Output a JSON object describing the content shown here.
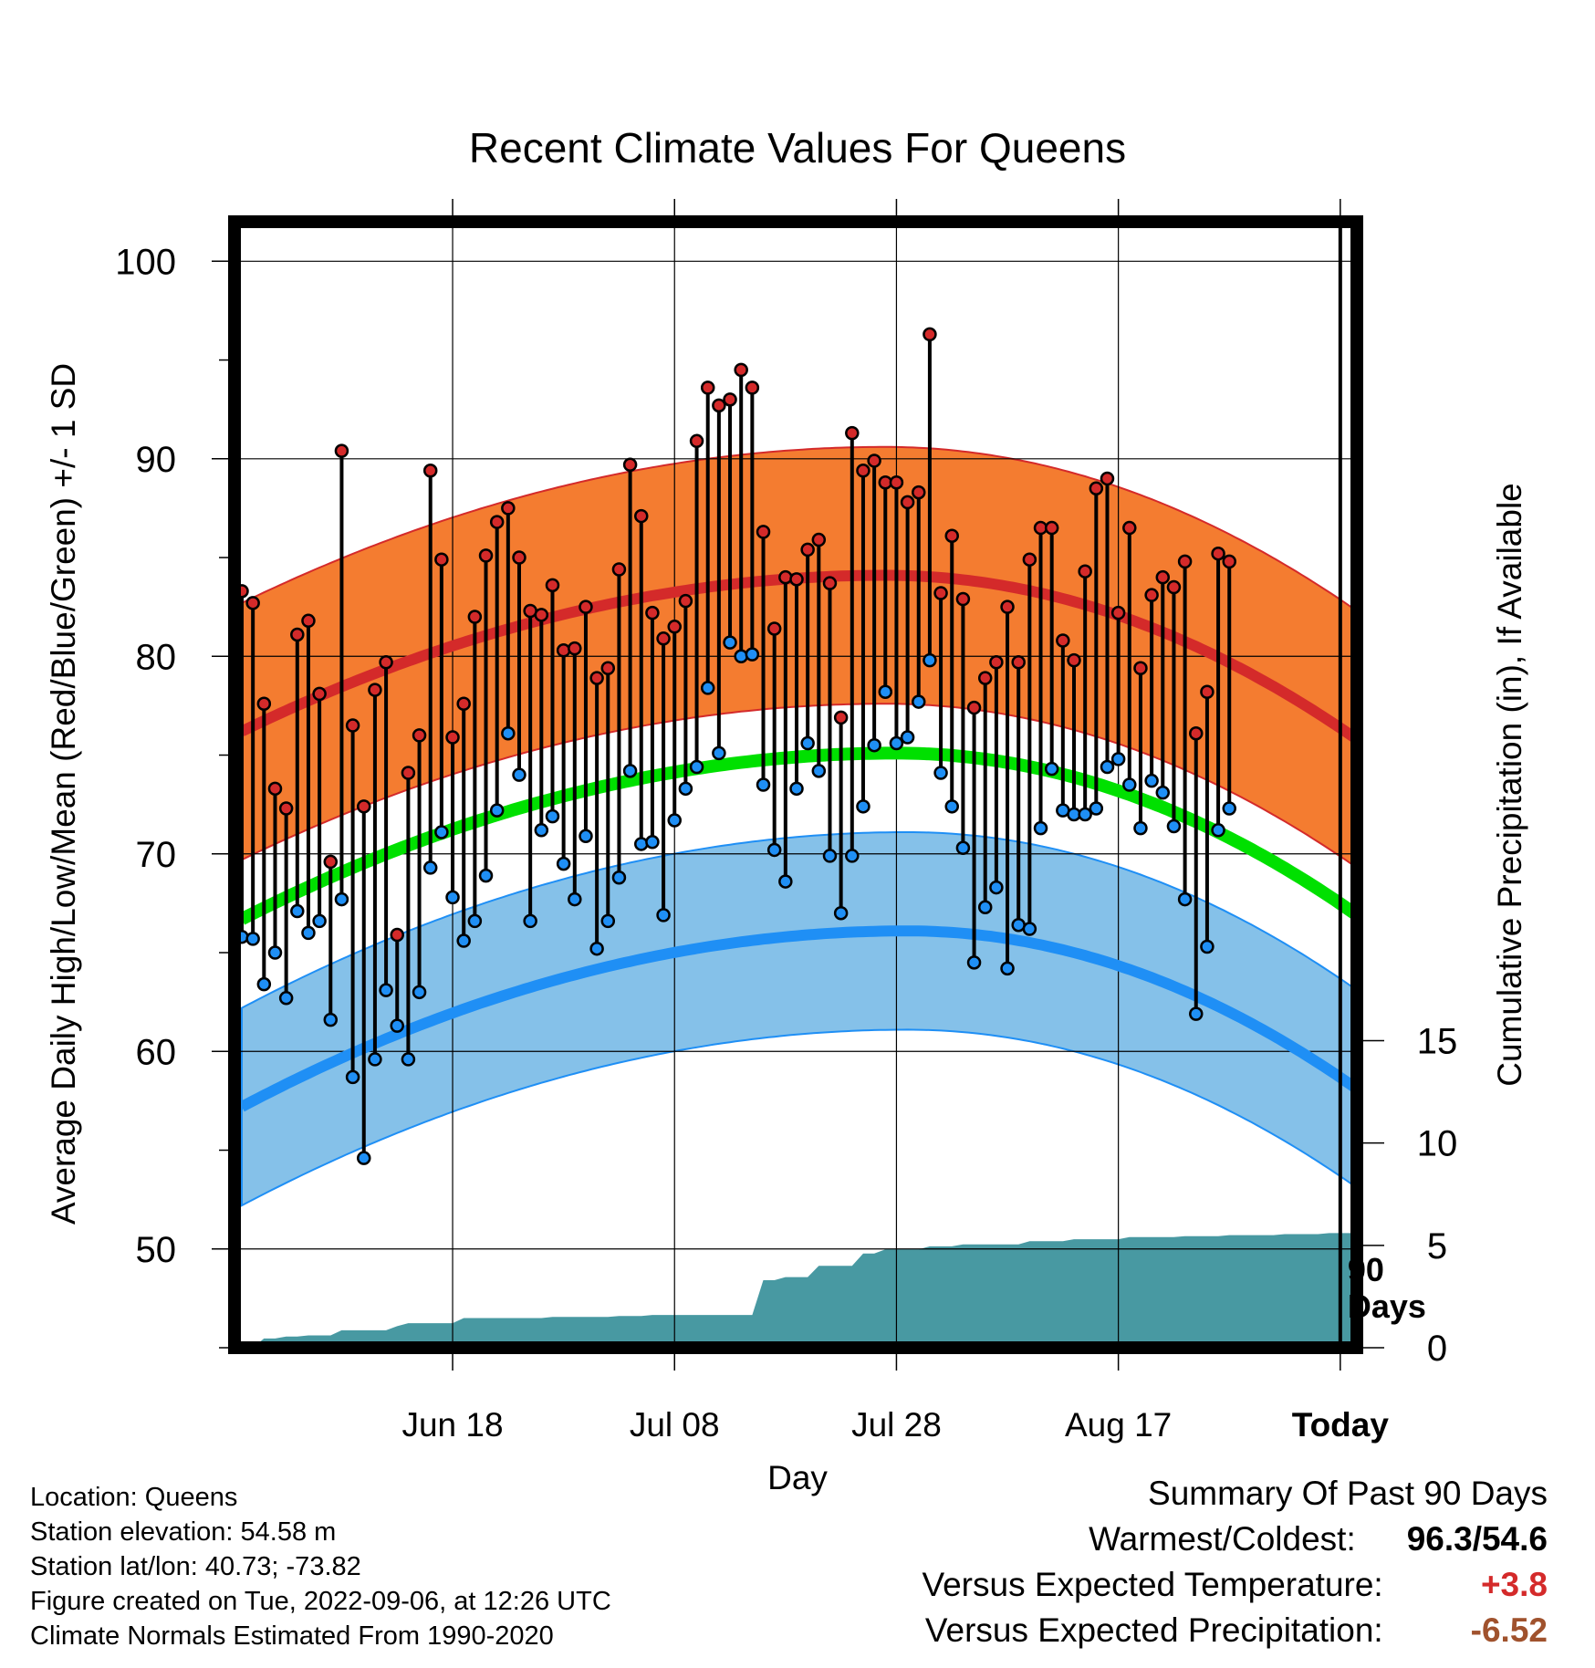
{
  "chart_data": {
    "type": "line",
    "title": "Recent Climate Values For Queens",
    "xlabel": "Day",
    "ylabel": "Average Daily High/Low/Mean (Red/Blue/Green) +/- 1 SD",
    "y2label": "Cumulative Precipitation (in), If Available",
    "ylim": [
      45,
      102
    ],
    "y2lim": [
      0,
      55
    ],
    "x_ticks": [
      {
        "day": 20,
        "label": "Jun 18"
      },
      {
        "day": 40,
        "label": "Jul 08"
      },
      {
        "day": 60,
        "label": "Jul 28"
      },
      {
        "day": 80,
        "label": "Aug 17"
      },
      {
        "day": 100,
        "label": "Today"
      }
    ],
    "y_ticks": [
      50,
      60,
      70,
      80,
      90,
      100
    ],
    "y2_ticks": [
      0,
      5,
      10,
      15
    ],
    "today_annotation": "90 Days",
    "colors": {
      "high_band": "#f47c30",
      "high_line": "#d42a2a",
      "low_band": "#85c1e9",
      "low_line": "#1f8ff5",
      "mean_line": "#00e000",
      "precip": "#4899a2"
    },
    "series": [
      {
        "name": "High",
        "values": [
          83.3,
          82.7,
          77.6,
          73.3,
          72.3,
          81.1,
          81.8,
          78.1,
          69.6,
          90.4,
          76.5,
          72.4,
          78.3,
          79.7,
          65.9,
          74.1,
          76.0,
          89.4,
          84.9,
          75.9,
          77.6,
          82.0,
          85.1,
          86.8,
          87.5,
          85.0,
          82.3,
          82.1,
          83.6,
          80.3,
          80.4,
          82.5,
          78.9,
          79.4,
          84.4,
          89.7,
          87.1,
          82.2,
          80.9,
          81.5,
          82.8,
          90.9,
          93.6,
          92.7,
          93.0,
          94.5,
          93.6,
          86.3,
          81.4,
          84.0,
          83.9,
          85.4,
          85.9,
          83.7,
          76.9,
          91.3,
          89.4,
          89.9,
          88.8,
          88.8,
          87.8,
          88.3,
          96.3,
          83.2,
          86.1,
          82.9,
          77.4,
          78.9,
          79.7,
          82.5,
          79.7,
          84.9,
          86.5,
          86.5,
          80.8,
          79.8,
          84.3,
          88.5,
          89.0,
          82.2,
          86.5,
          79.4,
          83.1,
          84.0,
          83.5,
          84.8,
          76.1,
          78.2,
          85.2,
          84.8
        ]
      },
      {
        "name": "Low",
        "values": [
          65.8,
          65.7,
          63.4,
          65.0,
          62.7,
          67.1,
          66.0,
          66.6,
          61.6,
          67.7,
          58.7,
          54.6,
          59.6,
          63.1,
          61.3,
          59.6,
          63.0,
          69.3,
          71.1,
          67.8,
          65.6,
          66.6,
          68.9,
          72.2,
          76.1,
          74.0,
          66.6,
          71.2,
          71.9,
          69.5,
          67.7,
          70.9,
          65.2,
          66.6,
          68.8,
          74.2,
          70.5,
          70.6,
          66.9,
          71.7,
          73.3,
          74.4,
          78.4,
          75.1,
          80.7,
          80.0,
          80.1,
          73.5,
          70.2,
          68.6,
          73.3,
          75.6,
          74.2,
          69.9,
          67.0,
          69.9,
          72.4,
          75.5,
          78.2,
          75.6,
          75.9,
          77.7,
          79.8,
          74.1,
          72.4,
          70.3,
          64.5,
          67.3,
          68.3,
          64.2,
          66.4,
          66.2,
          71.3,
          74.3,
          72.2,
          72.0,
          72.0,
          72.3,
          74.4,
          74.8,
          73.5,
          71.3,
          73.7,
          73.1,
          71.4,
          67.7,
          61.9,
          65.3,
          71.2,
          72.3
        ]
      },
      {
        "name": "Normal High",
        "sd": 6.5,
        "peak": 84.1,
        "peak_day": 59,
        "start": 76.2,
        "end": 75.6
      },
      {
        "name": "Normal Low",
        "sd": 5.0,
        "peak": 66.1,
        "peak_day": 61,
        "start": 57.2,
        "end": 57.9
      },
      {
        "name": "Normal Mean",
        "peak": 75.1,
        "peak_day": 60,
        "start": 66.7,
        "end": 66.7
      },
      {
        "name": "Cumulative Precipitation",
        "days": [
          1,
          2,
          3,
          4,
          5,
          6,
          7,
          8,
          9,
          10,
          12,
          13,
          14,
          15,
          16,
          17,
          18,
          19,
          20,
          21,
          22,
          23,
          24,
          25,
          26,
          27,
          28,
          29,
          30,
          31,
          32,
          33,
          34,
          35,
          36,
          37,
          38,
          39,
          40,
          41,
          42,
          43,
          44,
          45,
          46,
          47,
          48,
          49,
          50,
          51,
          52,
          53,
          54,
          55,
          56,
          57,
          58,
          59,
          60,
          61,
          62,
          63,
          64,
          65,
          66,
          67,
          68,
          69,
          70,
          71,
          72,
          73,
          74,
          75,
          76,
          77,
          78,
          79,
          80,
          81,
          82,
          83,
          84,
          85,
          86,
          87,
          88,
          89,
          90,
          91,
          92,
          93,
          94,
          95,
          96,
          97,
          98,
          99,
          100,
          101,
          102,
          103
        ],
        "values": [
          0.0,
          0.0,
          0.45,
          0.45,
          0.55,
          0.55,
          0.6,
          0.6,
          0.6,
          0.85,
          0.85,
          0.85,
          0.85,
          1.05,
          1.2,
          1.2,
          1.2,
          1.2,
          1.2,
          1.45,
          1.45,
          1.45,
          1.45,
          1.45,
          1.45,
          1.45,
          1.45,
          1.5,
          1.5,
          1.5,
          1.5,
          1.5,
          1.5,
          1.55,
          1.55,
          1.55,
          1.6,
          1.6,
          1.6,
          1.6,
          1.6,
          1.6,
          1.6,
          1.6,
          1.6,
          1.6,
          3.3,
          3.3,
          3.45,
          3.45,
          3.45,
          4.0,
          4.0,
          4.0,
          4.0,
          4.6,
          4.6,
          4.8,
          4.8,
          4.8,
          4.8,
          4.95,
          4.95,
          4.95,
          5.05,
          5.05,
          5.05,
          5.05,
          5.05,
          5.05,
          5.2,
          5.2,
          5.2,
          5.2,
          5.3,
          5.3,
          5.3,
          5.3,
          5.3,
          5.4,
          5.4,
          5.4,
          5.4,
          5.4,
          5.45,
          5.45,
          5.45,
          5.45,
          5.5,
          5.5,
          5.5,
          5.5,
          5.5,
          5.55,
          5.55,
          5.55,
          5.55,
          5.6,
          5.6,
          5.6,
          5.6,
          5.6
        ]
      }
    ]
  },
  "info": {
    "location": "Location: Queens",
    "elevation": "Station elevation: 54.58 m",
    "latlon": "Station lat/lon: 40.73; -73.82",
    "created": "Figure created on Tue, 2022-09-06, at 12:26 UTC",
    "normals": "Climate Normals Estimated From 1990-2020"
  },
  "summary": {
    "heading": "Summary Of Past 90 Days",
    "warm_cold_label": "Warmest/Coldest:",
    "warm_cold_value": "96.3/54.6",
    "temp_label": "Versus Expected Temperature:",
    "temp_value": "+3.8",
    "temp_color": "#d42a2a",
    "precip_label": "Versus Expected Precipitation:",
    "precip_value": "-6.52",
    "precip_color": "#a0522d"
  }
}
